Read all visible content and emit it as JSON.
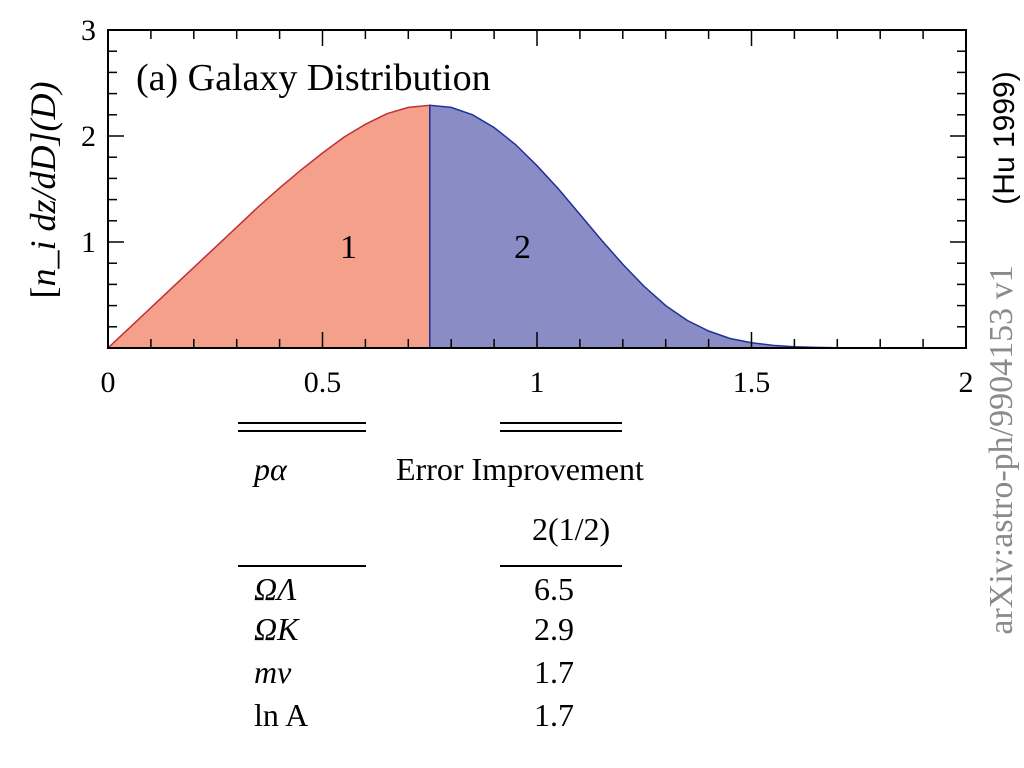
{
  "chart_data": {
    "type": "area",
    "title": "(a) Galaxy Distribution",
    "ylabel": "[ n_i dz/dD ](D)",
    "ylabel_parts": {
      "open": "[",
      "body": "n_i dz/dD",
      "close": "](D)"
    },
    "xlabel": "",
    "xlim": [
      0,
      2
    ],
    "ylim": [
      0,
      3
    ],
    "x_ticks": [
      "0",
      "0.5",
      "1",
      "1.5",
      "2"
    ],
    "y_ticks": [
      "1",
      "2",
      "3"
    ],
    "split_at": 0.75,
    "regions": [
      {
        "label": "1",
        "color": "#f4a08a",
        "edge": "#c0303a"
      },
      {
        "label": "2",
        "color": "#8a8cc6",
        "edge": "#20309a"
      }
    ],
    "curve": {
      "x": [
        0,
        0.05,
        0.1,
        0.15,
        0.2,
        0.25,
        0.3,
        0.35,
        0.4,
        0.45,
        0.5,
        0.55,
        0.6,
        0.65,
        0.7,
        0.75,
        0.8,
        0.85,
        0.9,
        0.95,
        1.0,
        1.05,
        1.1,
        1.15,
        1.2,
        1.25,
        1.3,
        1.35,
        1.4,
        1.45,
        1.5,
        1.55,
        1.6,
        1.65,
        1.7,
        1.75,
        1.8,
        1.85,
        1.9,
        1.95,
        2.0
      ],
      "y": [
        0,
        0.19,
        0.38,
        0.57,
        0.76,
        0.95,
        1.14,
        1.33,
        1.51,
        1.68,
        1.84,
        1.99,
        2.11,
        2.21,
        2.27,
        2.29,
        2.27,
        2.2,
        2.08,
        1.92,
        1.72,
        1.5,
        1.26,
        1.02,
        0.79,
        0.58,
        0.4,
        0.26,
        0.16,
        0.09,
        0.05,
        0.025,
        0.012,
        0.006,
        0.003,
        0.001,
        0.0005,
        0.0002,
        0.0001,
        0,
        0
      ]
    },
    "grid": false
  },
  "table": {
    "header_param": "pα",
    "header_error": "Error Improvement",
    "subheader": "2(1/2)",
    "rows": [
      {
        "param": "ΩΛ",
        "value": "6.5"
      },
      {
        "param": "ΩK",
        "value": "2.9"
      },
      {
        "param": "mν",
        "value": "1.7"
      },
      {
        "param": "ln A",
        "value": "1.7"
      }
    ]
  },
  "credit": "(Hu 1999)",
  "arxiv": "arXiv:astro-ph/9904153 v1"
}
